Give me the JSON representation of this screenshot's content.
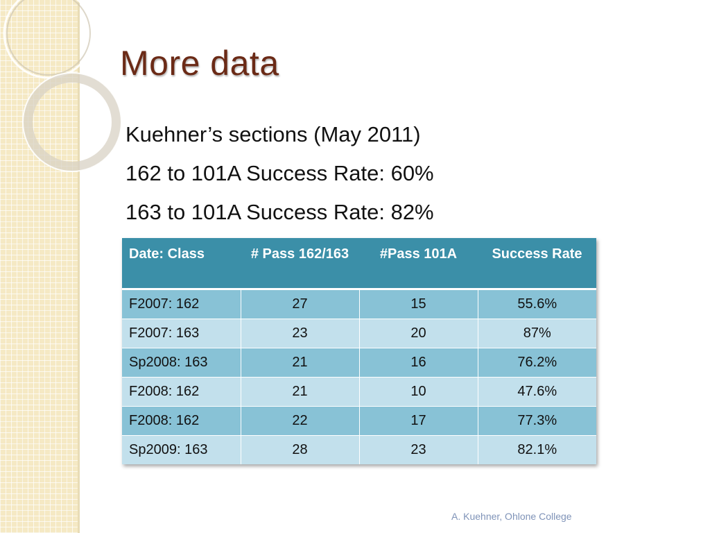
{
  "slide": {
    "title": "More data",
    "lines": [
      "Kuehner’s sections (May 2011)",
      "162 to 101A Success Rate: 60%",
      "163 to 101A Success Rate: 82%"
    ],
    "footer": "A. Kuehner, Ohlone College"
  },
  "table": {
    "headers": [
      "Date: Class",
      "# Pass 162/163",
      "#Pass 101A",
      "Success Rate"
    ],
    "rows": [
      [
        "F2007: 162",
        "27",
        "15",
        "55.6%"
      ],
      [
        "F2007: 163",
        "23",
        "20",
        "87%"
      ],
      [
        "Sp2008: 163",
        "21",
        "16",
        "76.2%"
      ],
      [
        "F2008: 162",
        "21",
        "10",
        "47.6%"
      ],
      [
        "F2008: 162",
        "22",
        "17",
        "77.3%"
      ],
      [
        "Sp2009: 163",
        "28",
        "23",
        "82.1%"
      ]
    ]
  },
  "colors": {
    "title": "#6b2a16",
    "header_bg": "#3b8fa8",
    "row_dark": "#88c2d6",
    "row_light": "#c2e0ec",
    "sidebar": "#f5e9c4"
  }
}
